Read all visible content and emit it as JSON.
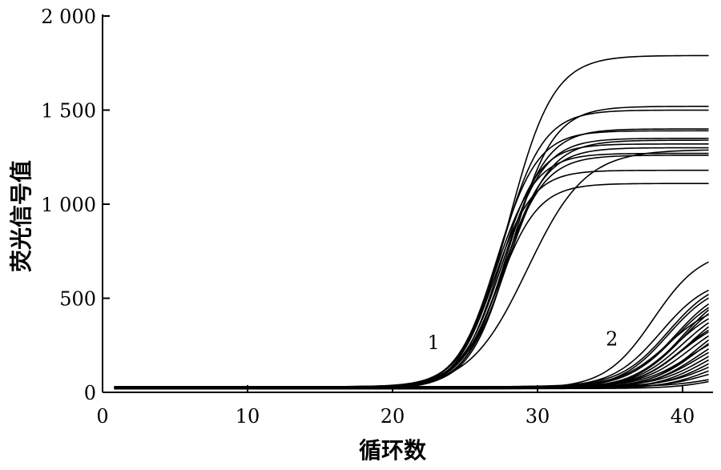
{
  "chart_data": {
    "type": "line",
    "title": "",
    "xlabel": "循环数",
    "ylabel": "荧光信号值",
    "xlim": [
      0,
      42
    ],
    "ylim": [
      0,
      2000
    ],
    "x_ticks": [
      {
        "value": 0,
        "label": "0"
      },
      {
        "value": 10,
        "label": "10"
      },
      {
        "value": 20,
        "label": "20"
      },
      {
        "value": 30,
        "label": "30"
      },
      {
        "value": 40,
        "label": "40"
      }
    ],
    "y_ticks": [
      {
        "value": 0,
        "label": "0"
      },
      {
        "value": 500,
        "label": "500"
      },
      {
        "value": 1000,
        "label": "1 000"
      },
      {
        "value": 1500,
        "label": "1 500"
      },
      {
        "value": 2000,
        "label": "2 000"
      }
    ],
    "annotations": [
      {
        "text": "1",
        "x": 22.4,
        "y": 230
      },
      {
        "text": "2",
        "x": 34.7,
        "y": 250
      }
    ],
    "grid": false,
    "legend": "none",
    "line_color": "#000000",
    "group_1_plateaus": [
      1790,
      1520,
      1500,
      1400,
      1390,
      1350,
      1340,
      1320,
      1300,
      1290,
      1270,
      1260,
      1180,
      1110
    ],
    "group_1_midpoints": [
      28.0,
      28.2,
      27.5,
      27.8,
      27.2,
      27.6,
      27.9,
      27.4,
      27.7,
      29.3,
      27.1,
      27.6,
      27.0,
      27.3
    ],
    "group_1_slope_k": [
      0.65,
      0.7,
      0.7,
      0.72,
      0.72,
      0.7,
      0.68,
      0.75,
      0.7,
      0.5,
      0.72,
      0.7,
      0.75,
      0.72
    ],
    "group_2_values_at_cycle_42": [
      700,
      550,
      530,
      510,
      480,
      460,
      450,
      430,
      420,
      400,
      380,
      360,
      340,
      330,
      310,
      290,
      270,
      260,
      240,
      220,
      200,
      180,
      160,
      140,
      120,
      100,
      70,
      60
    ],
    "group_2_midpoints": [
      38,
      38.5,
      39,
      39,
      39.5,
      39.5,
      40,
      40,
      39,
      39.5,
      40,
      40.5,
      40,
      40,
      40.5,
      41,
      41,
      40.5,
      41,
      41,
      41.5,
      41.5,
      42,
      42,
      42,
      42,
      42.5,
      43
    ],
    "group_2_slope_k": 0.6,
    "baseline": [
      20,
      25,
      30
    ]
  }
}
